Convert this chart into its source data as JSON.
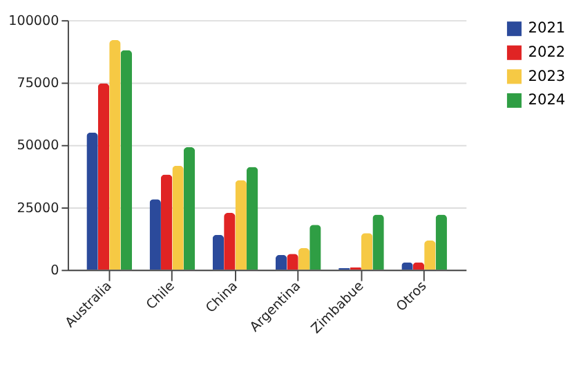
{
  "chart_data": {
    "type": "bar",
    "categories": [
      "Australia",
      "Chile",
      "China",
      "Argentina",
      "Zimbabue",
      "Otros"
    ],
    "series": [
      {
        "name": "2021",
        "color": "#2b4a9b",
        "values": [
          55000,
          28300,
          14000,
          6000,
          700,
          3000
        ]
      },
      {
        "name": "2022",
        "color": "#e02424",
        "values": [
          74700,
          38200,
          22800,
          6400,
          1000,
          3000
        ]
      },
      {
        "name": "2023",
        "color": "#f6c944",
        "values": [
          92000,
          41700,
          35900,
          8700,
          14700,
          11700
        ]
      },
      {
        "name": "2024",
        "color": "#2f9e44",
        "values": [
          88000,
          49100,
          41200,
          18000,
          22100,
          22100
        ]
      }
    ],
    "ylim": [
      0,
      100000
    ],
    "yticks": [
      0,
      25000,
      50000,
      75000,
      100000
    ],
    "grid": "y",
    "legend": "top right"
  }
}
